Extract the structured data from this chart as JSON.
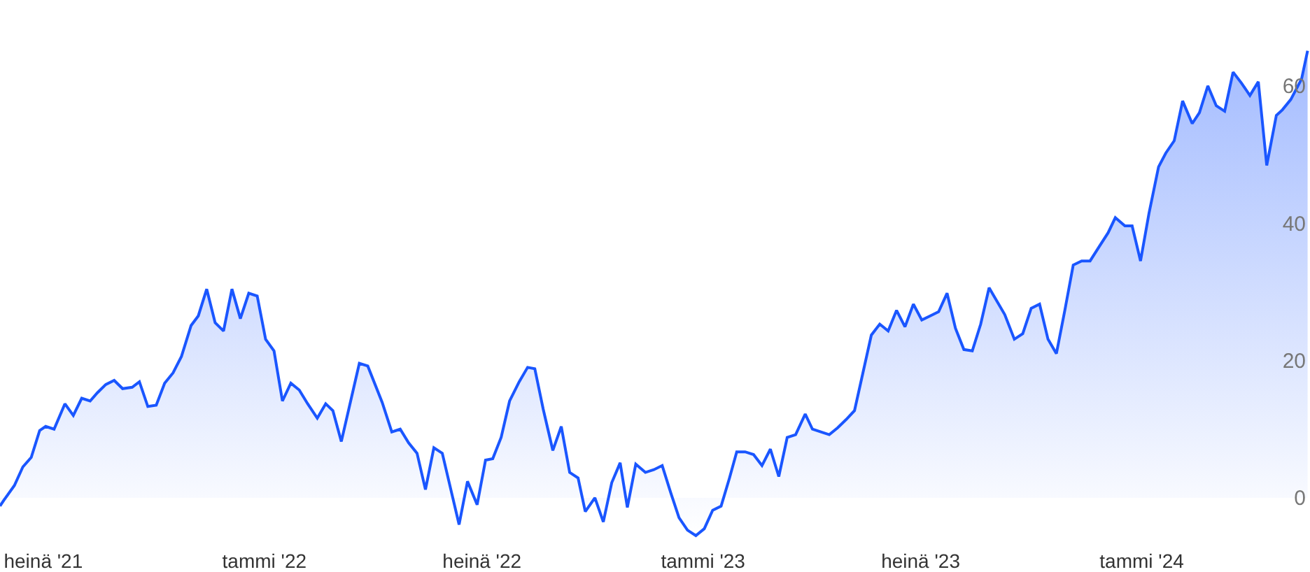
{
  "chart_data": {
    "type": "area",
    "x": [
      "2021-05-26",
      "2021-05-29",
      "2021-06-07",
      "2021-06-14",
      "2021-06-21",
      "2021-06-28",
      "2021-07-03",
      "2021-07-10",
      "2021-07-19",
      "2021-07-26",
      "2021-08-02",
      "2021-08-09",
      "2021-08-15",
      "2021-08-22",
      "2021-08-29",
      "2021-09-05",
      "2021-09-13",
      "2021-09-19",
      "2021-09-26",
      "2021-10-03",
      "2021-10-10",
      "2021-10-17",
      "2021-10-24",
      "2021-11-01",
      "2021-11-07",
      "2021-11-14",
      "2021-11-21",
      "2021-11-28",
      "2021-12-05",
      "2021-12-12",
      "2021-12-19",
      "2021-12-26",
      "2022-01-02",
      "2022-01-09",
      "2022-01-16",
      "2022-01-23",
      "2022-01-30",
      "2022-02-06",
      "2022-02-14",
      "2022-02-21",
      "2022-02-27",
      "2022-03-06",
      "2022-03-21",
      "2022-03-28",
      "2022-04-09",
      "2022-04-17",
      "2022-04-24",
      "2022-05-01",
      "2022-05-08",
      "2022-05-15",
      "2022-05-22",
      "2022-05-29",
      "2022-06-12",
      "2022-06-19",
      "2022-06-27",
      "2022-07-04",
      "2022-07-10",
      "2022-07-17",
      "2022-07-24",
      "2022-08-01",
      "2022-08-08",
      "2022-08-14",
      "2022-08-21",
      "2022-08-29",
      "2022-09-05",
      "2022-09-12",
      "2022-09-19",
      "2022-09-25",
      "2022-10-03",
      "2022-10-10",
      "2022-10-17",
      "2022-10-24",
      "2022-10-30",
      "2022-11-06",
      "2022-11-14",
      "2022-11-21",
      "2022-11-28",
      "2022-12-05",
      "2022-12-12",
      "2022-12-19",
      "2022-12-26",
      "2023-01-02",
      "2023-01-09",
      "2023-01-16",
      "2023-01-23",
      "2023-01-29",
      "2023-02-05",
      "2023-02-12",
      "2023-02-19",
      "2023-02-26",
      "2023-03-05",
      "2023-03-12",
      "2023-03-19",
      "2023-03-27",
      "2023-04-02",
      "2023-04-09",
      "2023-04-16",
      "2023-04-23",
      "2023-04-30",
      "2023-05-07",
      "2023-05-14",
      "2023-05-21",
      "2023-05-28",
      "2023-06-04",
      "2023-06-11",
      "2023-06-18",
      "2023-06-25",
      "2023-07-02",
      "2023-07-09",
      "2023-07-16",
      "2023-07-23",
      "2023-07-30",
      "2023-08-06",
      "2023-08-13",
      "2023-08-20",
      "2023-08-27",
      "2023-09-02",
      "2023-09-09",
      "2023-09-17",
      "2023-09-24",
      "2023-10-01",
      "2023-10-08",
      "2023-10-15",
      "2023-10-22",
      "2023-10-29",
      "2023-11-05",
      "2023-11-12",
      "2023-11-19",
      "2023-11-27",
      "2023-12-04",
      "2023-12-10",
      "2023-12-18",
      "2023-12-24",
      "2023-12-31",
      "2024-01-07",
      "2024-01-15",
      "2024-01-21",
      "2024-01-28",
      "2024-02-04",
      "2024-02-12",
      "2024-02-18",
      "2024-02-25",
      "2024-03-03",
      "2024-03-10",
      "2024-03-17",
      "2024-03-24",
      "2024-03-31",
      "2024-04-07",
      "2024-04-14",
      "2024-04-22",
      "2024-04-27",
      "2024-05-04",
      "2024-05-13",
      "2024-05-18"
    ],
    "series": [
      {
        "color": "#1a56ff",
        "values": [
          -1.2,
          -0.4,
          1.8,
          4.5,
          5.9,
          9.8,
          10.4,
          10.0,
          13.7,
          12.0,
          14.5,
          14.1,
          15.3,
          16.5,
          17.1,
          15.9,
          16.1,
          16.9,
          13.3,
          13.5,
          16.7,
          18.2,
          20.6,
          25.1,
          26.5,
          30.4,
          25.5,
          24.3,
          30.4,
          26.1,
          29.8,
          29.4,
          23.1,
          21.4,
          14.1,
          16.7,
          15.7,
          13.7,
          11.6,
          13.7,
          12.7,
          8.2,
          19.6,
          19.2,
          13.9,
          9.6,
          10.0,
          8.0,
          6.5,
          1.2,
          7.3,
          6.5,
          -3.9,
          2.4,
          -1.0,
          5.5,
          5.7,
          8.8,
          14.1,
          16.9,
          19.0,
          18.8,
          12.9,
          6.9,
          10.4,
          3.7,
          2.9,
          -2.0,
          0.0,
          -3.5,
          2.2,
          5.1,
          -1.4,
          4.9,
          3.7,
          4.1,
          4.7,
          0.8,
          -2.9,
          -4.7,
          -5.5,
          -4.5,
          -1.8,
          -1.2,
          2.9,
          6.7,
          6.7,
          6.3,
          4.7,
          7.1,
          3.1,
          8.8,
          9.2,
          12.2,
          10.0,
          9.6,
          9.2,
          10.2,
          11.4,
          12.7,
          18.2,
          23.7,
          25.3,
          24.3,
          27.3,
          24.9,
          28.2,
          25.9,
          26.5,
          27.1,
          29.8,
          24.7,
          21.6,
          21.4,
          25.3,
          30.6,
          28.8,
          26.7,
          23.1,
          23.9,
          27.6,
          28.2,
          23.1,
          21.0,
          27.3,
          33.9,
          34.5,
          34.5,
          36.7,
          38.6,
          40.8,
          39.6,
          39.6,
          34.5,
          41.4,
          48.2,
          50.2,
          52.0,
          57.8,
          54.5,
          56.1,
          60.0,
          57.1,
          56.3,
          62.0,
          60.4,
          58.6,
          60.6,
          48.4,
          55.7,
          56.5,
          58.0,
          61.0,
          65.1
        ]
      }
    ],
    "xlim": [
      "2021-05-26",
      "2024-05-20"
    ],
    "xticks": [
      {
        "value": "2021-07-01",
        "label": "heinä '21"
      },
      {
        "value": "2022-01-01",
        "label": "tammi '22"
      },
      {
        "value": "2022-07-01",
        "label": "heinä '22"
      },
      {
        "value": "2023-01-01",
        "label": "tammi '23"
      },
      {
        "value": "2023-07-01",
        "label": "heinä '23"
      },
      {
        "value": "2024-01-01",
        "label": "tammi '24"
      }
    ],
    "ylim": [
      -10.8,
      72.5
    ],
    "yticks": [
      0,
      20,
      40,
      60
    ],
    "marker": "none",
    "line_style": "solid"
  }
}
